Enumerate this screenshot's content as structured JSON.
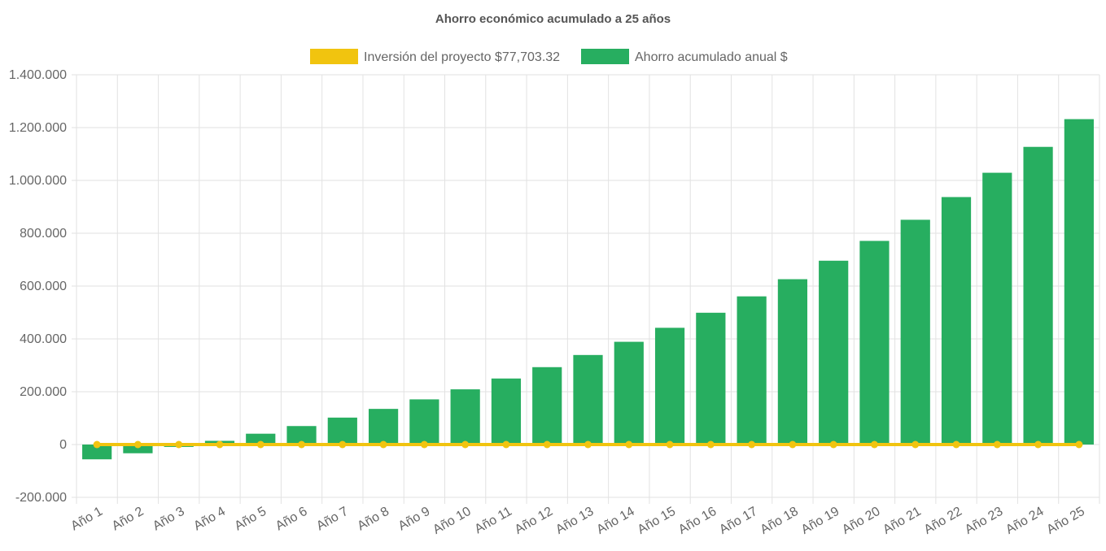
{
  "chart_data": {
    "type": "bar",
    "title": "Ahorro económico acumulado a 25 años",
    "legend_position": "top",
    "grid": true,
    "categories": [
      "Año 1",
      "Año 2",
      "Año 3",
      "Año 4",
      "Año 5",
      "Año 6",
      "Año 7",
      "Año 8",
      "Año 9",
      "Año 10",
      "Año 11",
      "Año 12",
      "Año 13",
      "Año 14",
      "Año 15",
      "Año 16",
      "Año 17",
      "Año 18",
      "Año 19",
      "Año 20",
      "Año 21",
      "Año 22",
      "Año 23",
      "Año 24",
      "Año 25"
    ],
    "y_ticks": [
      "1.400.000",
      "1.200.000",
      "1.000.000",
      "800.000",
      "600.000",
      "400.000",
      "200.000",
      "0",
      "-200.000"
    ],
    "ylim": [
      -200000,
      1400000
    ],
    "series": [
      {
        "name": "Inversión del proyecto $77,703.32",
        "type": "line",
        "color": "#f1c40f",
        "values": [
          0,
          0,
          0,
          0,
          0,
          0,
          0,
          0,
          0,
          0,
          0,
          0,
          0,
          0,
          0,
          0,
          0,
          0,
          0,
          0,
          0,
          0,
          0,
          0,
          0
        ]
      },
      {
        "name": "Ahorro acumulado anual $",
        "type": "bar",
        "color": "#27ae60",
        "values": [
          -56000,
          -33000,
          -9000,
          14000,
          41000,
          70000,
          102000,
          135000,
          171000,
          209000,
          250000,
          293000,
          339000,
          389000,
          442000,
          499000,
          561000,
          626000,
          696000,
          771000,
          851000,
          937000,
          1029000,
          1127000,
          1232000
        ]
      }
    ]
  }
}
